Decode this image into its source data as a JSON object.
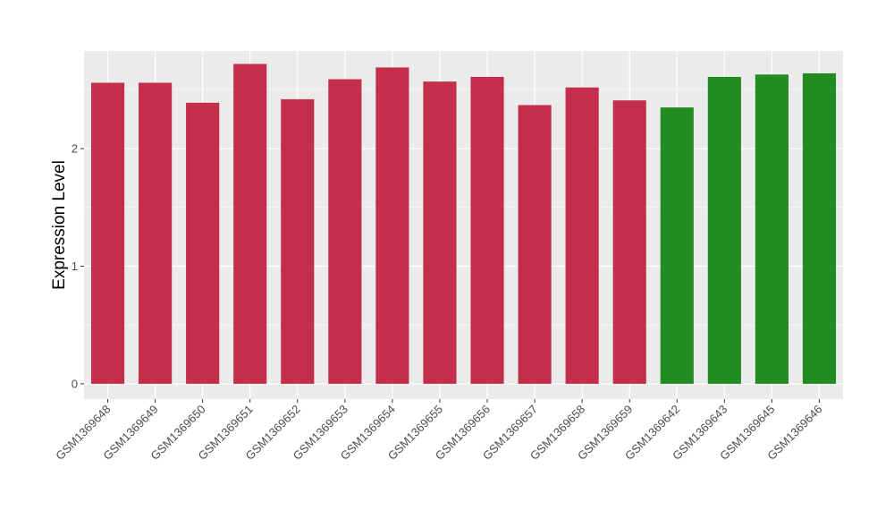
{
  "chart_data": {
    "type": "bar",
    "title": "",
    "xlabel": "",
    "ylabel": "Expression Level",
    "ylim": [
      -0.13,
      2.83
    ],
    "yticks": [
      0,
      1,
      2
    ],
    "ytick_labels": [
      "0",
      "1",
      "2"
    ],
    "grid": true,
    "legend": "none",
    "colors": {
      "panel_background": "#ebebeb",
      "grid_major": "#ffffff",
      "group_a": "#c32f4b",
      "group_b": "#228b22",
      "tick_text": "#4d4d4d",
      "tick_mark": "#333333"
    },
    "categories": [
      "GSM1369648",
      "GSM1369649",
      "GSM1369650",
      "GSM1369651",
      "GSM1369652",
      "GSM1369653",
      "GSM1369654",
      "GSM1369655",
      "GSM1369656",
      "GSM1369657",
      "GSM1369658",
      "GSM1369659",
      "GSM1369642",
      "GSM1369643",
      "GSM1369645",
      "GSM1369646"
    ],
    "values": [
      2.56,
      2.56,
      2.39,
      2.72,
      2.42,
      2.59,
      2.69,
      2.57,
      2.61,
      2.37,
      2.52,
      2.41,
      2.35,
      2.61,
      2.63,
      2.64
    ],
    "bar_groups": [
      "group_a",
      "group_a",
      "group_a",
      "group_a",
      "group_a",
      "group_a",
      "group_a",
      "group_a",
      "group_a",
      "group_a",
      "group_a",
      "group_a",
      "group_b",
      "group_b",
      "group_b",
      "group_b"
    ]
  }
}
